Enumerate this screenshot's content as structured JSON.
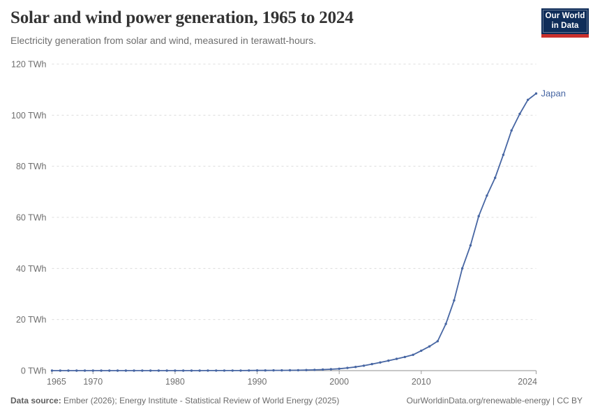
{
  "header": {
    "title": "Solar and wind power generation, 1965 to 2024",
    "subtitle": "Electricity generation from solar and wind, measured in terawatt-hours.",
    "logo": {
      "line1": "Our World",
      "line2": "in Data"
    }
  },
  "footer": {
    "datasource_label": "Data source:",
    "datasource_text": " Ember (2026); Energy Institute - Statistical Review of World Energy (2025)",
    "link_text": "OurWorldinData.org/renewable-energy | CC BY"
  },
  "colors": {
    "line": "#4766a3",
    "grid": "#dcdcdc",
    "axis": "#8f8f8f",
    "tick": "#9a9a9a",
    "tick_text": "#6e6e6e",
    "title_text": "#333333",
    "logo_bg": "#0f2d59",
    "logo_red": "#c9302c"
  },
  "chart_data": {
    "type": "line",
    "title": "Solar and wind power generation, 1965 to 2024",
    "subtitle": "Electricity generation from solar and wind, measured in terawatt-hours.",
    "ylabel": "TWh",
    "xlabel": "",
    "xlim": [
      1965,
      2024
    ],
    "ylim": [
      0,
      120
    ],
    "y_ticks": [
      0,
      20,
      40,
      60,
      80,
      100,
      120
    ],
    "y_tick_suffix": " TWh",
    "x_ticks": [
      1965,
      1970,
      1980,
      1990,
      2000,
      2010,
      2024
    ],
    "grid": "dashed-horizontal",
    "legend": "end-of-line-label",
    "series": [
      {
        "name": "Japan",
        "x": [
          1965,
          1966,
          1967,
          1968,
          1969,
          1970,
          1971,
          1972,
          1973,
          1974,
          1975,
          1976,
          1977,
          1978,
          1979,
          1980,
          1981,
          1982,
          1983,
          1984,
          1985,
          1986,
          1987,
          1988,
          1989,
          1990,
          1991,
          1992,
          1993,
          1994,
          1995,
          1996,
          1997,
          1998,
          1999,
          2000,
          2001,
          2002,
          2003,
          2004,
          2005,
          2006,
          2007,
          2008,
          2009,
          2010,
          2011,
          2012,
          2013,
          2014,
          2015,
          2016,
          2017,
          2018,
          2019,
          2020,
          2021,
          2022,
          2023,
          2024
        ],
        "values": [
          0,
          0,
          0,
          0,
          0,
          0,
          0,
          0,
          0,
          0,
          0,
          0,
          0,
          0,
          0,
          0,
          0.01,
          0.01,
          0.01,
          0.02,
          0.02,
          0.02,
          0.03,
          0.03,
          0.05,
          0.07,
          0.09,
          0.1,
          0.12,
          0.14,
          0.16,
          0.22,
          0.3,
          0.42,
          0.55,
          0.75,
          1.05,
          1.45,
          1.95,
          2.55,
          3.2,
          3.9,
          4.6,
          5.35,
          6.2,
          7.8,
          9.5,
          11.5,
          18.3,
          27.5,
          40,
          49,
          60.5,
          68.5,
          75.5,
          84.5,
          94,
          100.5,
          106,
          108.5
        ]
      }
    ]
  }
}
